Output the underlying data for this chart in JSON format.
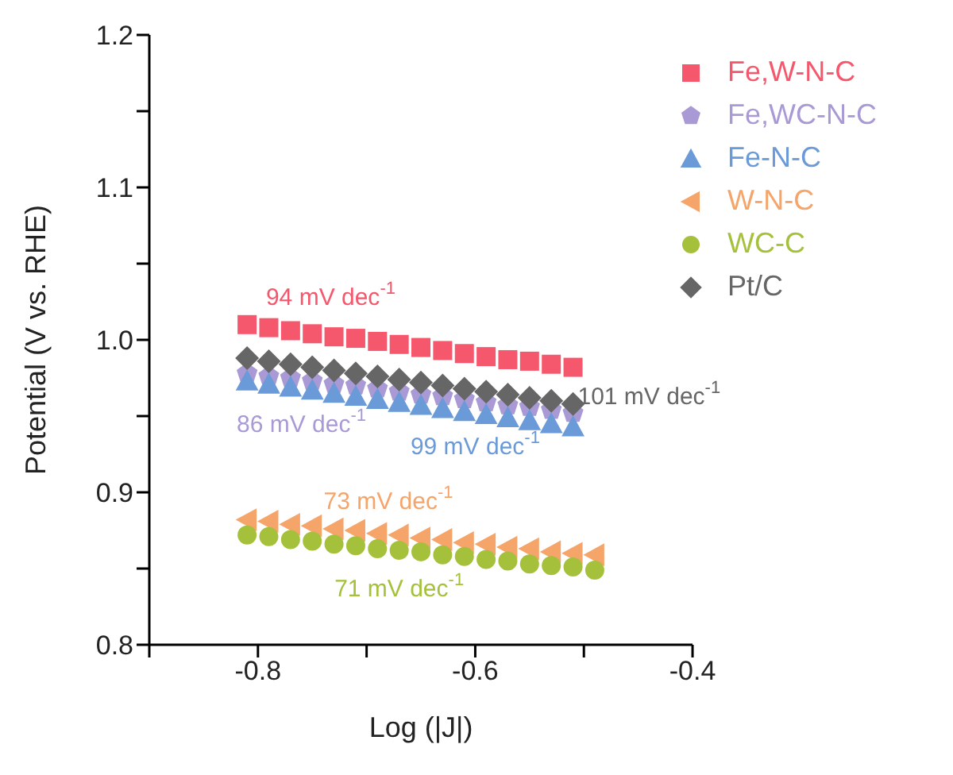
{
  "chart_data": {
    "type": "scatter",
    "xlabel": "Log (|J|)",
    "ylabel": "Potential (V vs. RHE)",
    "xlim": [
      -0.9,
      -0.4
    ],
    "xticks": [
      {
        "value": -0.9,
        "label": null
      },
      -0.8,
      {
        "value": -0.7,
        "label": null
      },
      -0.6,
      {
        "value": -0.5,
        "label": null
      },
      -0.4
    ],
    "ylim": [
      0.8,
      1.2
    ],
    "yticks": [
      {
        "value": 0.8,
        "label": "0.8"
      },
      {
        "value": 0.85,
        "label": null
      },
      {
        "value": 0.9,
        "label": "0.9"
      },
      {
        "value": 0.95,
        "label": null
      },
      {
        "value": 1.0,
        "label": "1.0"
      },
      {
        "value": 1.05,
        "label": null
      },
      {
        "value": 1.1,
        "label": "1.1"
      },
      {
        "value": 1.15,
        "label": null
      },
      {
        "value": 1.2,
        "label": "1.2"
      }
    ],
    "grid": false,
    "legend": "top right",
    "series": [
      {
        "name": "Fe,W-N-C",
        "color": "#f5576c",
        "marker": "square",
        "x": [
          -0.81,
          -0.79,
          -0.77,
          -0.75,
          -0.73,
          -0.71,
          -0.69,
          -0.67,
          -0.65,
          -0.63,
          -0.61,
          -0.59,
          -0.57,
          -0.55,
          -0.53,
          -0.51
        ],
        "values": [
          1.01,
          1.008,
          1.006,
          1.004,
          1.002,
          1.001,
          0.999,
          0.997,
          0.995,
          0.993,
          0.991,
          0.989,
          0.987,
          0.986,
          0.984,
          0.982
        ]
      },
      {
        "name": "Fe,WC-N-C",
        "color": "#a99ad6",
        "x": [
          -0.81,
          -0.79,
          -0.77,
          -0.75,
          -0.73,
          -0.71,
          -0.69,
          -0.67,
          -0.65,
          -0.63,
          -0.61,
          -0.59,
          -0.57,
          -0.55,
          -0.53,
          -0.51
        ],
        "values": [
          0.978,
          0.976,
          0.975,
          0.973,
          0.971,
          0.97,
          0.968,
          0.966,
          0.964,
          0.963,
          0.961,
          0.959,
          0.957,
          0.956,
          0.954,
          0.952
        ]
      },
      {
        "name": "Fe-N-C",
        "color": "#6a9bd8",
        "marker": "triangle",
        "x": [
          -0.81,
          -0.79,
          -0.77,
          -0.75,
          -0.73,
          -0.71,
          -0.69,
          -0.67,
          -0.65,
          -0.63,
          -0.61,
          -0.59,
          -0.57,
          -0.55,
          -0.53,
          -0.51
        ],
        "values": [
          0.973,
          0.971,
          0.969,
          0.967,
          0.965,
          0.963,
          0.961,
          0.959,
          0.957,
          0.955,
          0.953,
          0.951,
          0.949,
          0.947,
          0.945,
          0.943
        ]
      },
      {
        "name": "W-N-C",
        "color": "#f5a46a",
        "marker": "triangle-left",
        "x": [
          -0.81,
          -0.79,
          -0.77,
          -0.75,
          -0.73,
          -0.71,
          -0.69,
          -0.67,
          -0.65,
          -0.63,
          -0.61,
          -0.59,
          -0.57,
          -0.55,
          -0.53,
          -0.51,
          -0.49
        ],
        "values": [
          0.882,
          0.881,
          0.879,
          0.878,
          0.876,
          0.875,
          0.873,
          0.872,
          0.87,
          0.869,
          0.867,
          0.866,
          0.864,
          0.863,
          0.861,
          0.86,
          0.859
        ]
      },
      {
        "name": "WC-C",
        "color": "#a5c13c",
        "marker": "circle",
        "x": [
          -0.81,
          -0.79,
          -0.77,
          -0.75,
          -0.73,
          -0.71,
          -0.69,
          -0.67,
          -0.65,
          -0.63,
          -0.61,
          -0.59,
          -0.57,
          -0.55,
          -0.53,
          -0.51,
          -0.49
        ],
        "values": [
          0.872,
          0.871,
          0.869,
          0.868,
          0.866,
          0.865,
          0.863,
          0.862,
          0.861,
          0.859,
          0.858,
          0.856,
          0.855,
          0.853,
          0.852,
          0.851,
          0.849
        ]
      },
      {
        "name": "Pt/C",
        "color": "#666666",
        "marker": "diamond",
        "x": [
          -0.81,
          -0.79,
          -0.77,
          -0.75,
          -0.73,
          -0.71,
          -0.69,
          -0.67,
          -0.65,
          -0.63,
          -0.61,
          -0.59,
          -0.57,
          -0.55,
          -0.53,
          -0.51
        ],
        "values": [
          0.988,
          0.986,
          0.984,
          0.982,
          0.98,
          0.978,
          0.976,
          0.974,
          0.972,
          0.97,
          0.968,
          0.966,
          0.964,
          0.962,
          0.96,
          0.958
        ]
      }
    ],
    "annotations": [
      "94 mV dec$^{-1}$",
      "86 mV dec$^{-1}$",
      "101 mV dec$^{-1}$",
      "99 mV dec$^{-1}$",
      "73 mV dec$^{-1}$",
      "71 mV dec$^{-1}$"
    ]
  }
}
